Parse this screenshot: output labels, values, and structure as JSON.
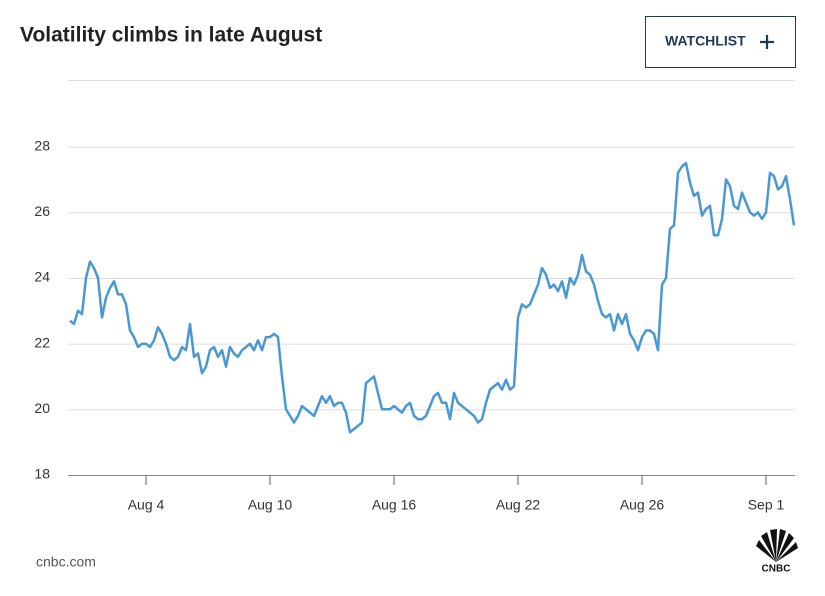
{
  "chart_data": {
    "type": "line",
    "title": "Volatility climbs in late August",
    "color": "#4a98d3",
    "grid": true,
    "ylim": [
      18,
      30
    ],
    "yticks": [
      18,
      20,
      22,
      24,
      26,
      28
    ],
    "categories": [
      null,
      null,
      null,
      null,
      null,
      null,
      null,
      null,
      null,
      null,
      null,
      null,
      null,
      null,
      null,
      null,
      null,
      null,
      null,
      "Aug 4",
      null,
      null,
      null,
      null,
      null,
      null,
      null,
      null,
      null,
      null,
      null,
      null,
      null,
      null,
      null,
      null,
      null,
      null,
      null,
      null,
      null,
      null,
      null,
      null,
      null,
      null,
      null,
      null,
      null,
      null,
      "Aug 10",
      null,
      null,
      null,
      null,
      null,
      null,
      null,
      null,
      null,
      null,
      null,
      null,
      null,
      null,
      null,
      null,
      null,
      null,
      null,
      null,
      null,
      null,
      null,
      null,
      null,
      null,
      null,
      null,
      null,
      null,
      "Aug 16",
      null,
      null,
      null,
      null,
      null,
      null,
      null,
      null,
      null,
      null,
      null,
      null,
      null,
      null,
      null,
      null,
      null,
      null,
      null,
      null,
      null,
      null,
      null,
      null,
      null,
      null,
      null,
      null,
      null,
      null,
      "Aug 22",
      null,
      null,
      null,
      null,
      null,
      null,
      null,
      null,
      null,
      null,
      null,
      null,
      null,
      null,
      null,
      null,
      null,
      null,
      null,
      null,
      null,
      null,
      null,
      null,
      null,
      null,
      null,
      null,
      null,
      null,
      "Aug 26",
      null,
      null,
      null,
      null,
      null,
      null,
      null,
      null,
      null,
      null,
      null,
      null,
      null,
      null,
      null,
      null,
      null,
      null,
      null,
      null,
      null,
      null,
      null,
      null,
      null,
      null,
      null,
      null,
      null,
      null,
      "Sep 1",
      null,
      null,
      null,
      null,
      null,
      null,
      null
    ],
    "values": [
      22.7,
      22.6,
      23.0,
      22.9,
      24.0,
      24.5,
      24.3,
      24.0,
      22.8,
      23.4,
      23.7,
      23.9,
      23.5,
      23.5,
      23.2,
      22.4,
      22.2,
      21.9,
      22.0,
      22.0,
      21.9,
      22.1,
      22.5,
      22.3,
      22.0,
      21.6,
      21.5,
      21.6,
      21.9,
      21.8,
      22.6,
      21.6,
      21.7,
      21.1,
      21.3,
      21.8,
      21.9,
      21.6,
      21.8,
      21.3,
      21.9,
      21.7,
      21.6,
      21.8,
      21.9,
      22.0,
      21.8,
      22.1,
      21.8,
      22.2,
      22.2,
      22.3,
      22.2,
      21.0,
      20.0,
      19.8,
      19.6,
      19.8,
      20.1,
      20.0,
      19.9,
      19.8,
      20.1,
      20.4,
      20.2,
      20.4,
      20.1,
      20.2,
      20.2,
      19.9,
      19.3,
      19.4,
      19.5,
      19.6,
      20.8,
      20.9,
      21.0,
      20.5,
      20.0,
      20.0,
      20.0,
      20.1,
      20.0,
      19.9,
      20.1,
      20.2,
      19.8,
      19.7,
      19.7,
      19.8,
      20.1,
      20.4,
      20.5,
      20.2,
      20.2,
      19.7,
      20.5,
      20.2,
      20.1,
      20.0,
      19.9,
      19.8,
      19.6,
      19.7,
      20.2,
      20.6,
      20.7,
      20.8,
      20.6,
      20.9,
      20.6,
      20.7,
      22.8,
      23.2,
      23.1,
      23.2,
      23.5,
      23.8,
      24.3,
      24.1,
      23.7,
      23.8,
      23.6,
      23.9,
      23.4,
      24.0,
      23.8,
      24.1,
      24.7,
      24.2,
      24.1,
      23.8,
      23.3,
      22.9,
      22.8,
      22.9,
      22.4,
      22.9,
      22.6,
      22.9,
      22.3,
      22.1,
      21.8,
      22.2,
      22.4,
      22.4,
      22.3,
      21.8,
      23.8,
      24.0,
      25.5,
      25.6,
      27.2,
      27.4,
      27.5,
      26.9,
      26.5,
      26.6,
      25.9,
      26.1,
      26.2,
      25.3,
      25.3,
      25.8,
      27.0,
      26.8,
      26.2,
      26.1,
      26.6,
      26.3,
      26.0,
      25.9,
      26.0,
      25.8,
      26.0,
      27.2,
      27.1,
      26.7,
      26.8,
      27.1,
      26.4,
      25.6
    ]
  },
  "button": "WATCHLIST",
  "source": "cnbc.com",
  "logo": "CNBC"
}
